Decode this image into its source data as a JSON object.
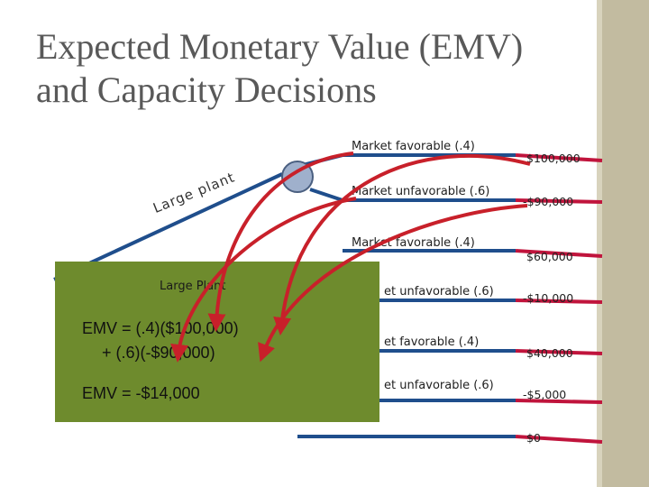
{
  "title": {
    "line1": "Expected Monetary Value (EMV)",
    "line2": "and Capacity Decisions"
  },
  "tree": {
    "decision_label": "Large plant",
    "branches": [
      {
        "label": "Market favorable (.4)",
        "payoff": "$100,000"
      },
      {
        "label": "Market unfavorable (.6)",
        "payoff": "-$90,000"
      },
      {
        "label": "Market favorable (.4)",
        "payoff": "$60,000"
      },
      {
        "label": "et unfavorable (.6)",
        "payoff": "-$10,000"
      },
      {
        "label": "et favorable (.4)",
        "payoff": "$40,000"
      },
      {
        "label": "et unfavorable (.6)",
        "payoff": "-$5,000"
      }
    ],
    "final_payoff": "$0"
  },
  "emv_box": {
    "title": "Large Plant",
    "line1": "EMV =     (.4)($100,000)",
    "line2": "+ (.6)(-$90,000)",
    "result": "EMV = -$14,000"
  },
  "colors": {
    "branch_blue": "#1f4e8c",
    "payoff_red": "#c0143c",
    "box_green": "#6e8b2d",
    "arrow_red": "#c8202a",
    "node_fill": "#9fb0cc",
    "sidebar": "#c2bba0"
  }
}
